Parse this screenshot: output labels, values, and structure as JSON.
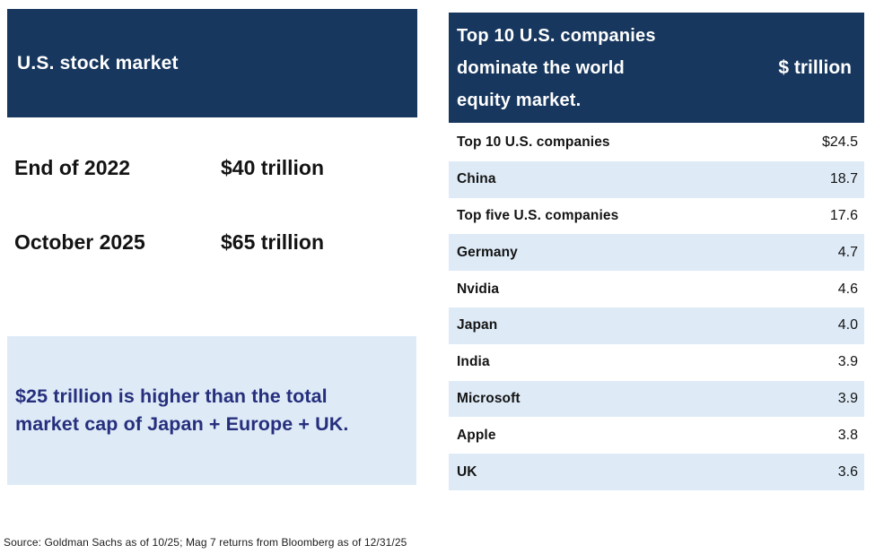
{
  "colors": {
    "navy": "#17375E",
    "light_blue": "#DEEBF7",
    "callout_text": "#272F7D",
    "text_dark": "#141414"
  },
  "left_panel": {
    "header": "U.S. stock market",
    "rows": [
      {
        "label": "End of 2022",
        "value": "$40 trillion"
      },
      {
        "label": "October 2025",
        "value": "$65 trillion"
      }
    ],
    "callout_lines": [
      "$25 trillion is higher than the total",
      "market cap of Japan + Europe + UK."
    ]
  },
  "right_panel": {
    "header_lines": [
      "Top 10 U.S. companies",
      "dominate the world",
      "equity market."
    ],
    "unit_label": "$ trillion",
    "rows": [
      {
        "label": "Top 10 U.S. companies",
        "value": "$24.5"
      },
      {
        "label": "China",
        "value": "18.7"
      },
      {
        "label": "Top five U.S. companies",
        "value": "17.6"
      },
      {
        "label": "Germany",
        "value": "4.7"
      },
      {
        "label": "Nvidia",
        "value": "4.6"
      },
      {
        "label": "Japan",
        "value": "4.0"
      },
      {
        "label": "India",
        "value": "3.9"
      },
      {
        "label": "Microsoft",
        "value": "3.9"
      },
      {
        "label": "Apple",
        "value": "3.8"
      },
      {
        "label": "UK",
        "value": "3.6"
      }
    ]
  },
  "source": "Source: Goldman Sachs as of 10/25; Mag 7 returns from Bloomberg as of 12/31/25",
  "chart_data": [
    {
      "type": "table",
      "title": "U.S. stock market",
      "rows": [
        [
          "End of 2022",
          "$40 trillion"
        ],
        [
          "October 2025",
          "$65 trillion"
        ]
      ],
      "annotation": "$25 trillion is higher than the total market cap of Japan + Europe + UK."
    },
    {
      "type": "table",
      "title": "Top 10 U.S. companies dominate the world equity market.",
      "unit": "$ trillion",
      "categories": [
        "Top 10 U.S. companies",
        "China",
        "Top five U.S. companies",
        "Germany",
        "Nvidia",
        "Japan",
        "India",
        "Microsoft",
        "Apple",
        "UK"
      ],
      "values": [
        24.5,
        18.7,
        17.6,
        4.7,
        4.6,
        4.0,
        3.9,
        3.9,
        3.8,
        3.6
      ]
    }
  ]
}
